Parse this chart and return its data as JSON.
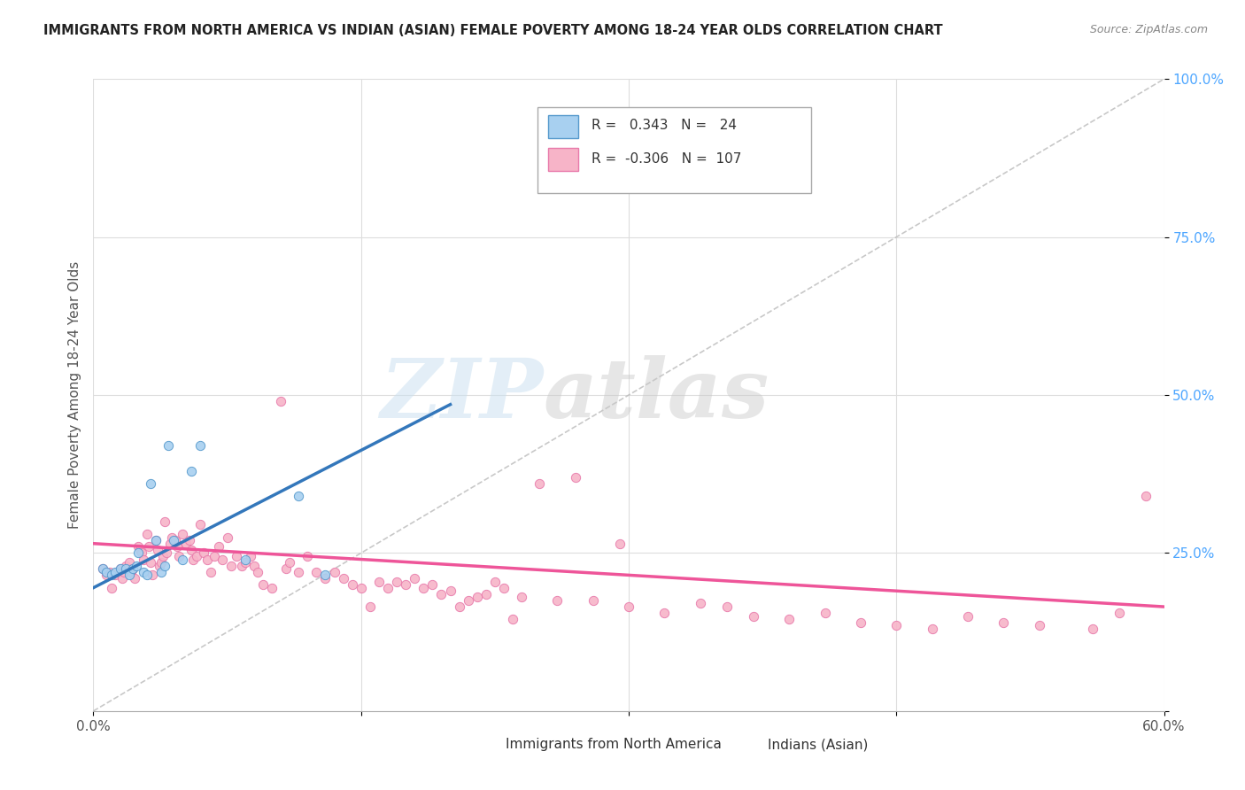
{
  "title": "IMMIGRANTS FROM NORTH AMERICA VS INDIAN (ASIAN) FEMALE POVERTY AMONG 18-24 YEAR OLDS CORRELATION CHART",
  "source": "Source: ZipAtlas.com",
  "ylabel": "Female Poverty Among 18-24 Year Olds",
  "watermark_zip": "ZIP",
  "watermark_atlas": "atlas",
  "legend_blue_r_val": "0.343",
  "legend_blue_n_val": "24",
  "legend_pink_r_val": "-0.306",
  "legend_pink_n_val": "107",
  "legend_label_blue": "Immigrants from North America",
  "legend_label_pink": "Indians (Asian)",
  "blue_color": "#a8d0f0",
  "pink_color": "#f7b4c8",
  "blue_edge_color": "#5599cc",
  "pink_edge_color": "#e87aaa",
  "blue_line_color": "#3377bb",
  "pink_line_color": "#ee5599",
  "blue_scatter_x": [
    0.005,
    0.007,
    0.01,
    0.012,
    0.015,
    0.018,
    0.02,
    0.022,
    0.024,
    0.025,
    0.028,
    0.03,
    0.032,
    0.035,
    0.038,
    0.04,
    0.042,
    0.045,
    0.05,
    0.055,
    0.06,
    0.085,
    0.115,
    0.13
  ],
  "blue_scatter_y": [
    0.225,
    0.22,
    0.215,
    0.22,
    0.225,
    0.225,
    0.215,
    0.225,
    0.23,
    0.25,
    0.22,
    0.215,
    0.36,
    0.27,
    0.22,
    0.23,
    0.42,
    0.27,
    0.24,
    0.38,
    0.42,
    0.24,
    0.34,
    0.215
  ],
  "pink_scatter_x": [
    0.005,
    0.007,
    0.009,
    0.01,
    0.012,
    0.013,
    0.015,
    0.016,
    0.017,
    0.018,
    0.02,
    0.021,
    0.022,
    0.023,
    0.025,
    0.026,
    0.027,
    0.028,
    0.03,
    0.031,
    0.032,
    0.033,
    0.035,
    0.036,
    0.037,
    0.038,
    0.039,
    0.04,
    0.041,
    0.043,
    0.044,
    0.046,
    0.047,
    0.048,
    0.05,
    0.052,
    0.054,
    0.055,
    0.056,
    0.058,
    0.06,
    0.062,
    0.064,
    0.066,
    0.068,
    0.07,
    0.072,
    0.075,
    0.077,
    0.08,
    0.083,
    0.085,
    0.088,
    0.09,
    0.092,
    0.095,
    0.1,
    0.105,
    0.108,
    0.11,
    0.115,
    0.12,
    0.125,
    0.13,
    0.135,
    0.14,
    0.145,
    0.15,
    0.155,
    0.16,
    0.165,
    0.17,
    0.175,
    0.18,
    0.185,
    0.19,
    0.195,
    0.2,
    0.205,
    0.21,
    0.215,
    0.22,
    0.225,
    0.23,
    0.235,
    0.24,
    0.25,
    0.26,
    0.27,
    0.28,
    0.3,
    0.32,
    0.34,
    0.355,
    0.37,
    0.39,
    0.41,
    0.43,
    0.45,
    0.47,
    0.49,
    0.51,
    0.53,
    0.56,
    0.575,
    0.59,
    0.295
  ],
  "pink_scatter_y": [
    0.225,
    0.215,
    0.22,
    0.195,
    0.215,
    0.22,
    0.225,
    0.21,
    0.22,
    0.23,
    0.235,
    0.22,
    0.225,
    0.21,
    0.26,
    0.255,
    0.25,
    0.24,
    0.28,
    0.26,
    0.235,
    0.215,
    0.27,
    0.255,
    0.23,
    0.235,
    0.245,
    0.3,
    0.25,
    0.265,
    0.275,
    0.27,
    0.26,
    0.245,
    0.28,
    0.265,
    0.27,
    0.255,
    0.24,
    0.245,
    0.295,
    0.25,
    0.24,
    0.22,
    0.245,
    0.26,
    0.24,
    0.275,
    0.23,
    0.245,
    0.23,
    0.235,
    0.245,
    0.23,
    0.22,
    0.2,
    0.195,
    0.49,
    0.225,
    0.235,
    0.22,
    0.245,
    0.22,
    0.21,
    0.22,
    0.21,
    0.2,
    0.195,
    0.165,
    0.205,
    0.195,
    0.205,
    0.2,
    0.21,
    0.195,
    0.2,
    0.185,
    0.19,
    0.165,
    0.175,
    0.18,
    0.185,
    0.205,
    0.195,
    0.145,
    0.18,
    0.36,
    0.175,
    0.37,
    0.175,
    0.165,
    0.155,
    0.17,
    0.165,
    0.15,
    0.145,
    0.155,
    0.14,
    0.135,
    0.13,
    0.15,
    0.14,
    0.135,
    0.13,
    0.155,
    0.34,
    0.265
  ],
  "xlim": [
    0.0,
    0.6
  ],
  "ylim": [
    0.0,
    1.0
  ],
  "xticks": [
    0.0,
    0.15,
    0.3,
    0.45,
    0.6
  ],
  "xtick_labels": [
    "0.0%",
    "",
    "",
    "",
    "60.0%"
  ],
  "yticks_right": [
    0.0,
    0.25,
    0.5,
    0.75,
    1.0
  ],
  "ytick_labels_right": [
    "",
    "25.0%",
    "50.0%",
    "75.0%",
    "100.0%"
  ],
  "grid_color": "#dddddd",
  "background_color": "#ffffff",
  "blue_trend_x0": 0.0,
  "blue_trend_x1": 0.2,
  "blue_trend_y0": 0.195,
  "blue_trend_y1": 0.485,
  "pink_trend_x0": 0.0,
  "pink_trend_x1": 0.6,
  "pink_trend_y0": 0.265,
  "pink_trend_y1": 0.165,
  "ref_line_x0": 0.0,
  "ref_line_x1": 0.6,
  "ref_line_y0": 0.0,
  "ref_line_y1": 1.0
}
